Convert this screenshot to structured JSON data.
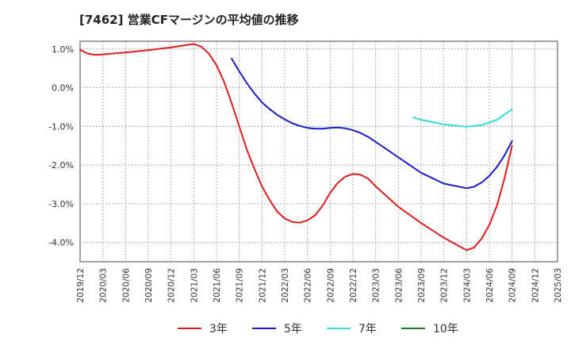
{
  "chart_data": {
    "type": "line",
    "title": "[7462]  営業CFマージンの平均値の推移",
    "xlabel": "",
    "ylabel": "",
    "y_ticks": [
      "1.0%",
      "0.0%",
      "-1.0%",
      "-2.0%",
      "-3.0%",
      "-4.0%"
    ],
    "y_tick_values": [
      1,
      0,
      -1,
      -2,
      -3,
      -4
    ],
    "ylim": [
      -4.5,
      1.2
    ],
    "x_ticks": [
      "2019/12",
      "2020/03",
      "2020/06",
      "2020/09",
      "2020/12",
      "2021/03",
      "2021/06",
      "2021/09",
      "2021/12",
      "2022/03",
      "2022/06",
      "2022/09",
      "2022/12",
      "2023/03",
      "2023/06",
      "2023/09",
      "2023/12",
      "2024/03",
      "2024/06",
      "2024/09",
      "2024/12",
      "2025/03"
    ],
    "grid": true,
    "legend_position": "bottom",
    "series": [
      {
        "name": "3年",
        "color": "#dd1c1c",
        "points": [
          [
            "2019/12",
            0.98
          ],
          [
            "2020/01",
            0.88
          ],
          [
            "2020/02",
            0.85
          ],
          [
            "2020/03",
            0.86
          ],
          [
            "2020/06",
            0.91
          ],
          [
            "2020/09",
            0.97
          ],
          [
            "2020/12",
            1.04
          ],
          [
            "2021/03",
            1.13
          ],
          [
            "2021/04",
            1.06
          ],
          [
            "2021/05",
            0.88
          ],
          [
            "2021/06",
            0.58
          ],
          [
            "2021/07",
            0.15
          ],
          [
            "2021/08",
            -0.4
          ],
          [
            "2021/09",
            -1.0
          ],
          [
            "2021/10",
            -1.6
          ],
          [
            "2021/11",
            -2.1
          ],
          [
            "2021/12",
            -2.55
          ],
          [
            "2022/01",
            -2.9
          ],
          [
            "2022/02",
            -3.2
          ],
          [
            "2022/03",
            -3.38
          ],
          [
            "2022/04",
            -3.47
          ],
          [
            "2022/05",
            -3.49
          ],
          [
            "2022/06",
            -3.43
          ],
          [
            "2022/07",
            -3.3
          ],
          [
            "2022/08",
            -3.05
          ],
          [
            "2022/09",
            -2.72
          ],
          [
            "2022/10",
            -2.46
          ],
          [
            "2022/11",
            -2.3
          ],
          [
            "2022/12",
            -2.23
          ],
          [
            "2023/01",
            -2.25
          ],
          [
            "2023/02",
            -2.35
          ],
          [
            "2023/03",
            -2.55
          ],
          [
            "2023/06",
            -3.08
          ],
          [
            "2023/09",
            -3.5
          ],
          [
            "2023/12",
            -3.88
          ],
          [
            "2024/03",
            -4.2
          ],
          [
            "2024/04",
            -4.13
          ],
          [
            "2024/05",
            -3.9
          ],
          [
            "2024/06",
            -3.55
          ],
          [
            "2024/07",
            -3.05
          ],
          [
            "2024/08",
            -2.35
          ],
          [
            "2024/09",
            -1.5
          ]
        ]
      },
      {
        "name": "5年",
        "color": "#1a1acc",
        "points": [
          [
            "2021/08",
            0.75
          ],
          [
            "2021/09",
            0.42
          ],
          [
            "2021/10",
            0.12
          ],
          [
            "2021/11",
            -0.15
          ],
          [
            "2021/12",
            -0.38
          ],
          [
            "2022/01",
            -0.55
          ],
          [
            "2022/02",
            -0.7
          ],
          [
            "2022/03",
            -0.82
          ],
          [
            "2022/04",
            -0.92
          ],
          [
            "2022/05",
            -0.99
          ],
          [
            "2022/06",
            -1.04
          ],
          [
            "2022/07",
            -1.06
          ],
          [
            "2022/08",
            -1.06
          ],
          [
            "2022/09",
            -1.04
          ],
          [
            "2022/10",
            -1.03
          ],
          [
            "2022/11",
            -1.05
          ],
          [
            "2022/12",
            -1.1
          ],
          [
            "2023/01",
            -1.17
          ],
          [
            "2023/02",
            -1.27
          ],
          [
            "2023/03",
            -1.4
          ],
          [
            "2023/06",
            -1.8
          ],
          [
            "2023/09",
            -2.2
          ],
          [
            "2023/12",
            -2.48
          ],
          [
            "2024/03",
            -2.6
          ],
          [
            "2024/04",
            -2.56
          ],
          [
            "2024/05",
            -2.45
          ],
          [
            "2024/06",
            -2.28
          ],
          [
            "2024/07",
            -2.05
          ],
          [
            "2024/08",
            -1.75
          ],
          [
            "2024/09",
            -1.38
          ]
        ]
      },
      {
        "name": "7年",
        "color": "#33dddd",
        "points": [
          [
            "2023/08",
            -0.77
          ],
          [
            "2023/09",
            -0.83
          ],
          [
            "2023/12",
            -0.95
          ],
          [
            "2024/03",
            -1.01
          ],
          [
            "2024/05",
            -0.97
          ],
          [
            "2024/07",
            -0.83
          ],
          [
            "2024/09",
            -0.56
          ]
        ]
      },
      {
        "name": "10年",
        "color": "#1c7c1c",
        "points": []
      }
    ]
  }
}
